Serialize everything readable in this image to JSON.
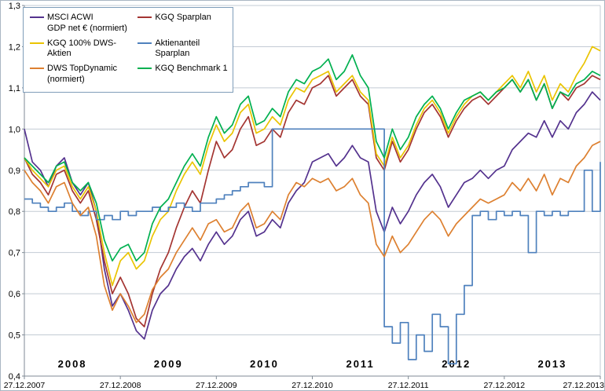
{
  "chart_data": {
    "type": "line",
    "title": "",
    "xlabel": "",
    "ylabel": "",
    "xlim": [
      0,
      72
    ],
    "ylim": [
      0.4,
      1.3
    ],
    "grid": "horizontal",
    "legend_position": "top-left",
    "x_tick_positions": [
      0,
      12,
      24,
      36,
      48,
      60,
      72
    ],
    "x_tick_labels": [
      "27.12.2007",
      "27.12.2008",
      "27.12.2009",
      "27.12.2010",
      "27.12.2011",
      "27.12.2012",
      "27.12.2013"
    ],
    "y_ticks": [
      1.3,
      1.2,
      1.1,
      1.0,
      0.9,
      0.8,
      0.7,
      0.6,
      0.5,
      0.4
    ],
    "y_tick_labels": [
      "1,3",
      "1,2",
      "1,1",
      "1,0",
      "0,9",
      "0,8",
      "0,7",
      "0,6",
      "0,5",
      "0,4"
    ],
    "year_annotations": [
      {
        "label": "2008",
        "x": 6
      },
      {
        "label": "2009",
        "x": 18
      },
      {
        "label": "2010",
        "x": 30
      },
      {
        "label": "2011",
        "x": 42
      },
      {
        "label": "2012",
        "x": 54
      },
      {
        "label": "2013",
        "x": 66
      }
    ],
    "colors": {
      "grid": "#c3cbd4",
      "axis": "#7f8a94",
      "text": "#000000",
      "background": "#ffffff"
    },
    "series": [
      {
        "name": "MSCI ACWI\nGDP net € (normiert)",
        "color": "#54328e",
        "values": [
          1.0,
          0.92,
          0.9,
          0.86,
          0.91,
          0.93,
          0.87,
          0.84,
          0.87,
          0.8,
          0.66,
          0.57,
          0.6,
          0.56,
          0.51,
          0.49,
          0.56,
          0.6,
          0.62,
          0.66,
          0.69,
          0.71,
          0.68,
          0.72,
          0.75,
          0.72,
          0.74,
          0.78,
          0.8,
          0.74,
          0.75,
          0.78,
          0.76,
          0.82,
          0.85,
          0.87,
          0.92,
          0.93,
          0.94,
          0.91,
          0.93,
          0.96,
          0.93,
          0.92,
          0.8,
          0.75,
          0.81,
          0.77,
          0.8,
          0.84,
          0.87,
          0.89,
          0.86,
          0.81,
          0.84,
          0.87,
          0.88,
          0.9,
          0.88,
          0.9,
          0.91,
          0.95,
          0.97,
          0.99,
          0.98,
          1.02,
          0.98,
          1.02,
          1.0,
          1.04,
          1.06,
          1.09,
          1.07
        ]
      },
      {
        "name": "KGQ Sparplan",
        "color": "#a43532",
        "values": [
          0.93,
          0.89,
          0.87,
          0.84,
          0.89,
          0.9,
          0.85,
          0.82,
          0.85,
          0.78,
          0.68,
          0.6,
          0.64,
          0.6,
          0.54,
          0.52,
          0.6,
          0.66,
          0.7,
          0.76,
          0.81,
          0.85,
          0.82,
          0.9,
          0.97,
          0.93,
          0.95,
          1.0,
          1.03,
          0.96,
          0.97,
          1.0,
          0.98,
          1.04,
          1.07,
          1.06,
          1.1,
          1.11,
          1.13,
          1.08,
          1.1,
          1.12,
          1.08,
          1.06,
          0.93,
          0.9,
          0.97,
          0.92,
          0.95,
          1.0,
          1.04,
          1.06,
          1.03,
          0.98,
          1.02,
          1.05,
          1.07,
          1.08,
          1.06,
          1.08,
          1.1,
          1.12,
          1.09,
          1.12,
          1.07,
          1.11,
          1.05,
          1.09,
          1.07,
          1.1,
          1.11,
          1.13,
          1.12
        ]
      },
      {
        "name": "KGQ 100% DWS-Aktien",
        "color": "#eac402",
        "values": [
          0.93,
          0.9,
          0.88,
          0.86,
          0.9,
          0.91,
          0.86,
          0.83,
          0.86,
          0.8,
          0.7,
          0.62,
          0.68,
          0.7,
          0.66,
          0.68,
          0.74,
          0.78,
          0.8,
          0.85,
          0.89,
          0.92,
          0.89,
          0.96,
          1.01,
          0.97,
          0.99,
          1.04,
          1.06,
          0.99,
          1.0,
          1.03,
          1.01,
          1.07,
          1.1,
          1.09,
          1.12,
          1.13,
          1.14,
          1.09,
          1.11,
          1.13,
          1.09,
          1.07,
          0.94,
          0.91,
          0.98,
          0.93,
          0.96,
          1.01,
          1.05,
          1.07,
          1.04,
          0.99,
          1.03,
          1.06,
          1.08,
          1.09,
          1.07,
          1.09,
          1.11,
          1.13,
          1.1,
          1.14,
          1.09,
          1.13,
          1.07,
          1.11,
          1.09,
          1.13,
          1.16,
          1.2,
          1.19
        ]
      },
      {
        "name": "Aktienanteil Sparplan",
        "color": "#4f81bd",
        "style": "step",
        "values": [
          0.83,
          0.82,
          0.81,
          0.8,
          0.81,
          0.82,
          0.8,
          0.79,
          0.8,
          0.78,
          0.79,
          0.78,
          0.8,
          0.79,
          0.8,
          0.8,
          0.81,
          0.8,
          0.81,
          0.82,
          0.81,
          0.8,
          0.82,
          0.82,
          0.83,
          0.84,
          0.85,
          0.86,
          0.87,
          0.87,
          0.86,
          1.0,
          1.0,
          1.0,
          1.0,
          1.0,
          1.0,
          1.0,
          1.0,
          1.0,
          1.0,
          1.0,
          1.0,
          1.0,
          1.0,
          0.52,
          0.48,
          0.53,
          0.44,
          0.5,
          0.46,
          0.55,
          0.52,
          0.43,
          0.55,
          0.62,
          0.79,
          0.8,
          0.78,
          0.8,
          0.79,
          0.8,
          0.79,
          0.7,
          0.8,
          0.79,
          0.8,
          0.79,
          0.8,
          0.8,
          0.9,
          0.8,
          0.92
        ]
      },
      {
        "name": "DWS TopDynamic\n(normiert)",
        "color": "#dd8030",
        "values": [
          0.9,
          0.87,
          0.85,
          0.82,
          0.86,
          0.87,
          0.82,
          0.79,
          0.81,
          0.74,
          0.62,
          0.56,
          0.6,
          0.57,
          0.53,
          0.55,
          0.61,
          0.64,
          0.66,
          0.7,
          0.73,
          0.76,
          0.73,
          0.77,
          0.78,
          0.75,
          0.76,
          0.8,
          0.82,
          0.76,
          0.77,
          0.8,
          0.78,
          0.84,
          0.87,
          0.86,
          0.88,
          0.87,
          0.88,
          0.85,
          0.86,
          0.88,
          0.84,
          0.82,
          0.72,
          0.69,
          0.74,
          0.7,
          0.72,
          0.75,
          0.78,
          0.8,
          0.78,
          0.74,
          0.77,
          0.79,
          0.81,
          0.83,
          0.82,
          0.83,
          0.84,
          0.87,
          0.85,
          0.88,
          0.85,
          0.89,
          0.84,
          0.88,
          0.87,
          0.91,
          0.93,
          0.96,
          0.97
        ]
      },
      {
        "name": "KGQ Benchmark 1",
        "color": "#00b050",
        "values": [
          0.93,
          0.91,
          0.89,
          0.87,
          0.91,
          0.92,
          0.87,
          0.85,
          0.87,
          0.82,
          0.73,
          0.68,
          0.71,
          0.72,
          0.68,
          0.7,
          0.77,
          0.81,
          0.83,
          0.87,
          0.91,
          0.94,
          0.91,
          0.98,
          1.03,
          0.99,
          1.01,
          1.06,
          1.08,
          1.01,
          1.02,
          1.05,
          1.03,
          1.09,
          1.12,
          1.11,
          1.14,
          1.15,
          1.17,
          1.12,
          1.14,
          1.18,
          1.13,
          1.1,
          0.97,
          0.93,
          1.0,
          0.95,
          0.98,
          1.03,
          1.06,
          1.08,
          1.05,
          1.0,
          1.04,
          1.07,
          1.08,
          1.09,
          1.07,
          1.09,
          1.1,
          1.12,
          1.09,
          1.12,
          1.07,
          1.11,
          1.05,
          1.09,
          1.08,
          1.11,
          1.12,
          1.14,
          1.13
        ]
      }
    ]
  }
}
